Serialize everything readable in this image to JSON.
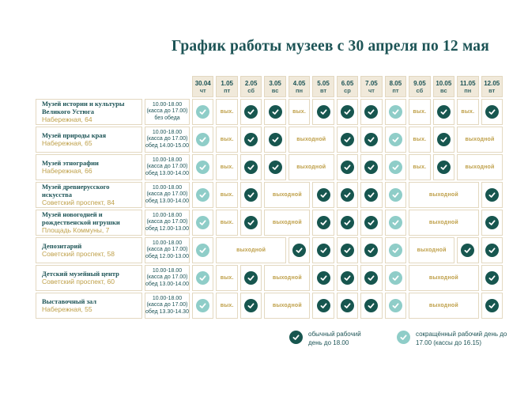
{
  "title": "График работы музеев с 30 апреля по 12 мая",
  "colors": {
    "dark_check": "#17564f",
    "light_check": "#8fcdc8",
    "teal_text": "#1d5456",
    "gold_text": "#bfa04a",
    "border": "#e3d8c0",
    "header_bg": "#f0e9da"
  },
  "table": {
    "cell_labels": {
      "vyh": "вых.",
      "closed": "выходной"
    },
    "columns": [
      {
        "date": "30.04",
        "day": "чт"
      },
      {
        "date": "1.05",
        "day": "пт"
      },
      {
        "date": "2.05",
        "day": "сб"
      },
      {
        "date": "3.05",
        "day": "вс"
      },
      {
        "date": "4.05",
        "day": "пн"
      },
      {
        "date": "5.05",
        "day": "вт"
      },
      {
        "date": "6.05",
        "day": "ср"
      },
      {
        "date": "7.05",
        "day": "чт"
      },
      {
        "date": "8.05",
        "day": "пт"
      },
      {
        "date": "9.05",
        "day": "сб"
      },
      {
        "date": "10.05",
        "day": "вс"
      },
      {
        "date": "11.05",
        "day": "пн"
      },
      {
        "date": "12.05",
        "day": "вт"
      }
    ],
    "rows": [
      {
        "name": "Музей истории и культуры Великого Устюга",
        "address": "Набережная, 64",
        "hours": [
          "10.00-18.00",
          "(касса до 17.00)",
          "без обеда"
        ],
        "cells": [
          {
            "t": "light"
          },
          {
            "t": "vyh"
          },
          {
            "t": "dark"
          },
          {
            "t": "dark"
          },
          {
            "t": "vyh"
          },
          {
            "t": "dark"
          },
          {
            "t": "dark"
          },
          {
            "t": "dark"
          },
          {
            "t": "light"
          },
          {
            "t": "vyh"
          },
          {
            "t": "dark"
          },
          {
            "t": "vyh"
          },
          {
            "t": "dark"
          }
        ]
      },
      {
        "name": "Музей природы края",
        "address": "Набережная, 65",
        "hours": [
          "10.00-18.00",
          "(касса до 17.00)",
          "обед 14.00-15.00"
        ],
        "cells": [
          {
            "t": "light"
          },
          {
            "t": "vyh"
          },
          {
            "t": "dark"
          },
          {
            "t": "dark"
          },
          {
            "t": "closed",
            "span": 2
          },
          {
            "t": "dark"
          },
          {
            "t": "dark"
          },
          {
            "t": "light"
          },
          {
            "t": "vyh"
          },
          {
            "t": "dark"
          },
          {
            "t": "closed",
            "span": 2
          }
        ]
      },
      {
        "name": "Музей этнографии",
        "address": "Набережная, 66",
        "hours": [
          "10.00-18.00",
          "(касса до 17.00)",
          "обед 13.00-14.00"
        ],
        "cells": [
          {
            "t": "light"
          },
          {
            "t": "vyh"
          },
          {
            "t": "dark"
          },
          {
            "t": "dark"
          },
          {
            "t": "closed",
            "span": 2
          },
          {
            "t": "dark"
          },
          {
            "t": "dark"
          },
          {
            "t": "light"
          },
          {
            "t": "vyh"
          },
          {
            "t": "dark"
          },
          {
            "t": "closed",
            "span": 2
          }
        ]
      },
      {
        "name": "Музей древнерусского искусства",
        "address": "Советский проспект, 84",
        "hours": [
          "10.00-18.00",
          "(касса до 17.00)",
          "обед 13.00-14.00"
        ],
        "cells": [
          {
            "t": "light"
          },
          {
            "t": "vyh"
          },
          {
            "t": "dark"
          },
          {
            "t": "closed",
            "span": 2
          },
          {
            "t": "dark"
          },
          {
            "t": "dark"
          },
          {
            "t": "dark"
          },
          {
            "t": "light"
          },
          {
            "t": "closed",
            "span": 3
          },
          {
            "t": "dark"
          }
        ]
      },
      {
        "name": "Музей новогодней и рождественской игрушки",
        "address": "Площадь Коммуны, 7",
        "hours": [
          "10.00-18.00",
          "(касса до 17.00)",
          "обед 12.00-13.00"
        ],
        "cells": [
          {
            "t": "light"
          },
          {
            "t": "vyh"
          },
          {
            "t": "dark"
          },
          {
            "t": "closed",
            "span": 2
          },
          {
            "t": "dark"
          },
          {
            "t": "dark"
          },
          {
            "t": "dark"
          },
          {
            "t": "light"
          },
          {
            "t": "closed",
            "span": 3
          },
          {
            "t": "dark"
          }
        ]
      },
      {
        "name": "Депозитарий",
        "address": "Советский проспект, 58",
        "hours": [
          "10.00-18.00",
          "(касса до 17.00)",
          "обед 12.00-13.00"
        ],
        "cells": [
          {
            "t": "light"
          },
          {
            "t": "closed",
            "span": 3
          },
          {
            "t": "dark"
          },
          {
            "t": "dark"
          },
          {
            "t": "dark"
          },
          {
            "t": "dark"
          },
          {
            "t": "light"
          },
          {
            "t": "closed",
            "span": 2
          },
          {
            "t": "dark"
          },
          {
            "t": "dark"
          }
        ]
      },
      {
        "name": "Детский музейный центр",
        "address": "Советский проспект, 60",
        "hours": [
          "10.00-18.00",
          "(касса до 17.00)",
          "обед 13.00-14.00"
        ],
        "cells": [
          {
            "t": "light"
          },
          {
            "t": "vyh"
          },
          {
            "t": "dark"
          },
          {
            "t": "closed",
            "span": 2
          },
          {
            "t": "dark"
          },
          {
            "t": "dark"
          },
          {
            "t": "dark"
          },
          {
            "t": "light"
          },
          {
            "t": "closed",
            "span": 3
          },
          {
            "t": "dark"
          }
        ]
      },
      {
        "name": "Выставочный зал",
        "address": "Набережная, 55",
        "hours": [
          "10.00-18.00",
          "(касса до 17.00)",
          "обед 13.30-14.30"
        ],
        "cells": [
          {
            "t": "light"
          },
          {
            "t": "vyh"
          },
          {
            "t": "dark"
          },
          {
            "t": "closed",
            "span": 2
          },
          {
            "t": "dark"
          },
          {
            "t": "dark"
          },
          {
            "t": "dark"
          },
          {
            "t": "light"
          },
          {
            "t": "closed",
            "span": 3
          },
          {
            "t": "dark"
          }
        ]
      }
    ]
  },
  "legend": {
    "items": [
      {
        "type": "dark",
        "label": "обычный рабочий день до 18.00"
      },
      {
        "type": "light",
        "label": "сокращённый рабочий день до 17.00 (кассы до 16.15)"
      }
    ]
  }
}
